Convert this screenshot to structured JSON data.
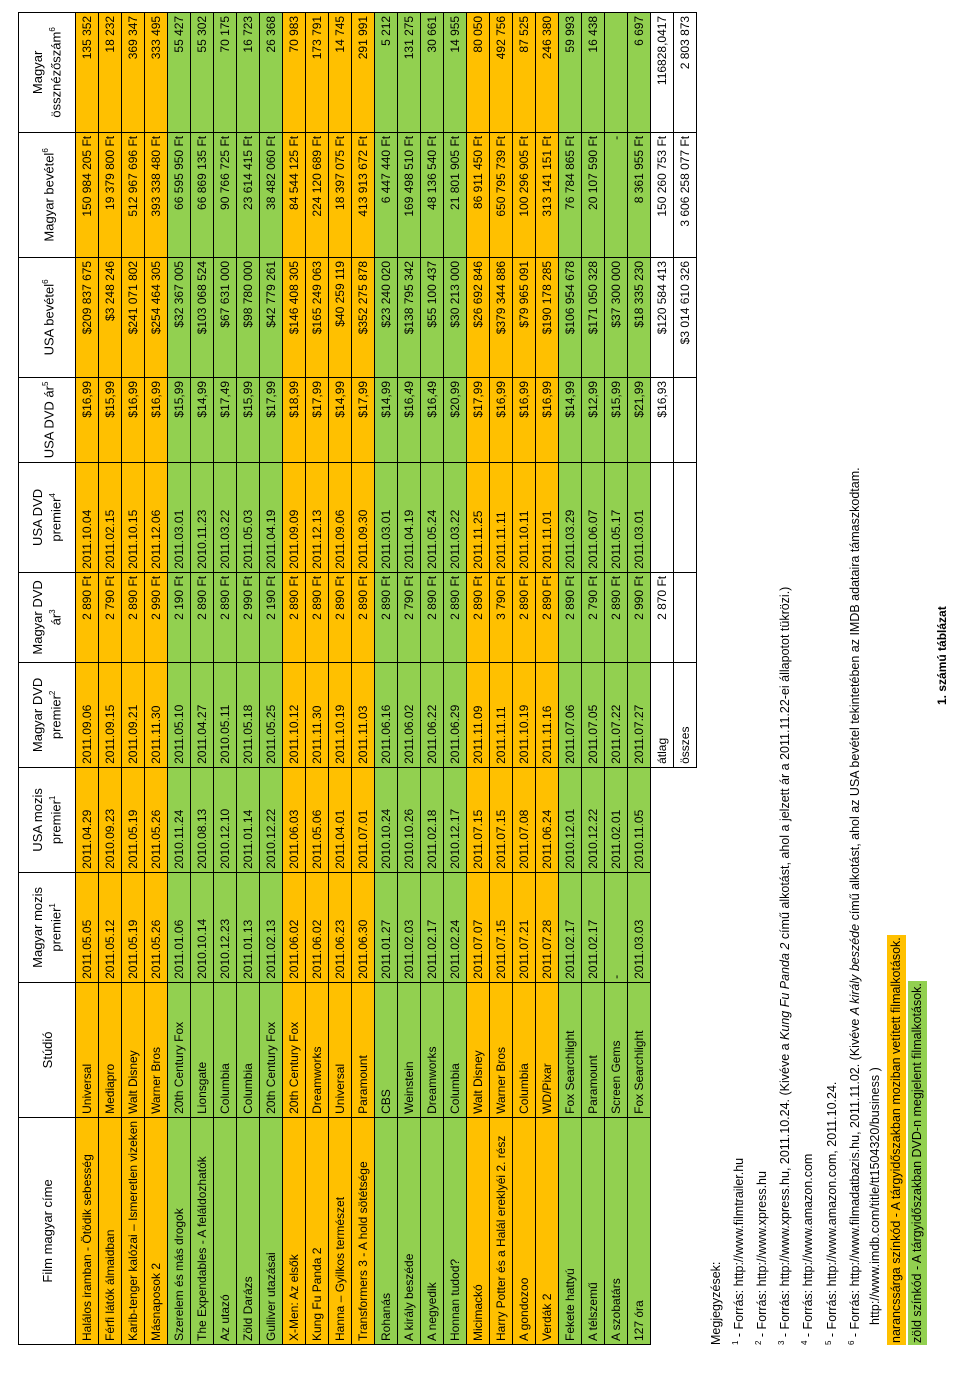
{
  "table": {
    "headers": [
      {
        "label": "Film magyar címe"
      },
      {
        "label": "Stúdió"
      },
      {
        "label": "Magyar mozis premier",
        "note": "1"
      },
      {
        "label": "USA mozis premier",
        "note": "1"
      },
      {
        "label": "Magyar DVD premier",
        "note": "2"
      },
      {
        "label": "Magyar DVD ár",
        "note": "3"
      },
      {
        "label": "USA DVD premier",
        "note": "4"
      },
      {
        "label": "USA DVD ár",
        "note": "5"
      },
      {
        "label": "USA bevétel",
        "note": "6"
      },
      {
        "label": "Magyar bevétel",
        "note": "6"
      },
      {
        "label": "Magyar össznézőszám",
        "note": "6"
      }
    ],
    "colors": {
      "orange": "#ffc000",
      "green": "#92d050"
    },
    "rows": [
      {
        "category": "orange",
        "cells": [
          "Halálos iramban - Ötödik sebesség",
          "Universal",
          "2011.05.05",
          "2011.04.29",
          "2011.09.06",
          "2 890 Ft",
          "2011.10.04",
          "$16,99",
          "$209 837 675",
          "150 984 205 Ft",
          "135 352"
        ]
      },
      {
        "category": "orange",
        "cells": [
          "Férfi látók álmaidban",
          "Mediapro",
          "2011.05.12",
          "2010.09.23",
          "2011.09.15",
          "2 790 Ft",
          "2011.02.15",
          "$15,99",
          "$3 248 246",
          "19 379 800 Ft",
          "18 232"
        ]
      },
      {
        "category": "orange",
        "cells": [
          "Karib-tenger kalózai – Ismeretlen vizeken",
          "Walt Disney",
          "2011.05.19",
          "2011.05.19",
          "2011.09.21",
          "2 890 Ft",
          "2011.10.15",
          "$16,99",
          "$241 071 802",
          "512 967 696 Ft",
          "369 347"
        ]
      },
      {
        "category": "orange",
        "cells": [
          "Másnaposok 2",
          "Warner Bros",
          "2011.05.26",
          "2011.05.26",
          "2011.11.30",
          "2 990 Ft",
          "2011.12.06",
          "$16,99",
          "$254 464 305",
          "393 338 480 Ft",
          "333 495"
        ]
      },
      {
        "category": "green",
        "cells": [
          "Szerelem és más drogok",
          "20th Century Fox",
          "2011.01.06",
          "2010.11.24",
          "2011.05.10",
          "2 190 Ft",
          "2011.03.01",
          "$15,99",
          "$32 367 005",
          "66 595 950 Ft",
          "55 427"
        ]
      },
      {
        "category": "green",
        "cells": [
          "The Expendables - A feláldozhatók",
          "Lionsgate",
          "2010.10.14",
          "2010.08.13",
          "2011.04.27",
          "2 890 Ft",
          "2010.11.23",
          "$14,99",
          "$103 068 524",
          "66 869 135 Ft",
          "55 302"
        ]
      },
      {
        "category": "green",
        "cells": [
          "Az utazó",
          "Columbia",
          "2010.12.23",
          "2010.12.10",
          "2010.05.11",
          "2 890 Ft",
          "2011.03.22",
          "$17,49",
          "$67 631 000",
          "90 766 725 Ft",
          "70 175"
        ]
      },
      {
        "category": "green",
        "cells": [
          "Zöld Darázs",
          "Columbia",
          "2011.01.13",
          "2011.01.14",
          "2011.05.18",
          "2 990 Ft",
          "2011.05.03",
          "$15,99",
          "$98 780 000",
          "23 614 415 Ft",
          "16 723"
        ]
      },
      {
        "category": "green",
        "cells": [
          "Gulliver utazásai",
          "20th Century Fox",
          "2011.02.13",
          "2010.12.22",
          "2011.05.25",
          "2 190 Ft",
          "2011.04.19",
          "$17,99",
          "$42 779 261",
          "38 482 060 Ft",
          "26 368"
        ]
      },
      {
        "category": "orange",
        "cells": [
          "X-Men: Az elsők",
          "20th Century Fox",
          "2011.06.02",
          "2011.06.03",
          "2011.10.12",
          "2 890 Ft",
          "2011.09.09",
          "$18,99",
          "$146 408 305",
          "84 544 125 Ft",
          "70 983"
        ]
      },
      {
        "category": "orange",
        "cells": [
          "Kung Fu Panda 2",
          "Dreamworks",
          "2011.06.02",
          "2011.05.06",
          "2011.11.30",
          "2 890 Ft",
          "2011.12.13",
          "$17,99",
          "$165 249 063",
          "224 120 689 Ft",
          "173 791"
        ]
      },
      {
        "category": "orange",
        "cells": [
          "Hanna – Gyilkos természet",
          "Universal",
          "2011.06.23",
          "2011.04.01",
          "2011.10.19",
          "2 890 Ft",
          "2011.09.06",
          "$14,99",
          "$40 259 119",
          "18 397 075 Ft",
          "14 745"
        ]
      },
      {
        "category": "orange",
        "cells": [
          "Transformers 3 - A hold sötétsége",
          "Paramount",
          "2011.06.30",
          "2011.07.01",
          "2011.11.03",
          "2 890 Ft",
          "2011.09.30",
          "$17,99",
          "$352 275 878",
          "413 913 672 Ft",
          "291 991"
        ]
      },
      {
        "category": "green",
        "cells": [
          "Rohanás",
          "CBS",
          "2011.01.27",
          "2010.10.24",
          "2011.06.16",
          "2 890 Ft",
          "2011.03.01",
          "$14,99",
          "$23 240 020",
          "6 447 440 Ft",
          "5 212"
        ]
      },
      {
        "category": "green",
        "cells": [
          "A király beszéde",
          "Weinstein",
          "2011.02.03",
          "2010.10.26",
          "2011.06.02",
          "2 790 Ft",
          "2011.04.19",
          "$16,49",
          "$138 795 342",
          "169 498 510 Ft",
          "131 275"
        ]
      },
      {
        "category": "green",
        "cells": [
          "A negyedik",
          "Dreamworks",
          "2011.02.17",
          "2011.02.18",
          "2011.06.22",
          "2 890 Ft",
          "2011.05.24",
          "$16,49",
          "$55 100 437",
          "48 136 540 Ft",
          "30 661"
        ]
      },
      {
        "category": "green",
        "cells": [
          "Honnan tudod?",
          "Columbia",
          "2011.02.24",
          "2010.12.17",
          "2011.06.29",
          "2 890 Ft",
          "2011.03.22",
          "$20,99",
          "$30 213 000",
          "21 801 905 Ft",
          "14 955"
        ]
      },
      {
        "category": "orange",
        "cells": [
          "Micimackó",
          "Walt Disney",
          "2011.07.07",
          "2011.07.15",
          "2011.11.09",
          "2 890 Ft",
          "2011.11.25",
          "$17,99",
          "$26 692 846",
          "86 911 450 Ft",
          "80 050"
        ]
      },
      {
        "category": "orange",
        "cells": [
          "Harry Potter és a Halál ereklyéi 2. rész",
          "Warner Bros",
          "2011.07.15",
          "2011.07.15",
          "2011.11.11",
          "3 790 Ft",
          "2011.11.11",
          "$16,99",
          "$379 344 886",
          "650 795 739 Ft",
          "492 756"
        ]
      },
      {
        "category": "orange",
        "cells": [
          "A gondozoo",
          "Columbia",
          "2011.07.21",
          "2011.07.08",
          "2011.10.19",
          "2 890 Ft",
          "2011.10.11",
          "$16,99",
          "$79 965 091",
          "100 296 905 Ft",
          "87 525"
        ]
      },
      {
        "category": "orange",
        "cells": [
          "Verdák 2",
          "WD/Pixar",
          "2011.07.28",
          "2011.06.24",
          "2011.11.16",
          "2 890 Ft",
          "2011.11.01",
          "$16,99",
          "$190 178 285",
          "313 141 151 Ft",
          "246 380"
        ]
      },
      {
        "category": "green",
        "cells": [
          "Fekete hattyú",
          "Fox Searchlight",
          "2011.02.17",
          "2010.12.01",
          "2011.07.06",
          "2 890 Ft",
          "2011.03.29",
          "$14,99",
          "$106 954 678",
          "76 784 865 Ft",
          "59 993"
        ]
      },
      {
        "category": "green",
        "cells": [
          "A télszemű",
          "Paramount",
          "2011.02.17",
          "2010.12.22",
          "2011.07.05",
          "2 790 Ft",
          "2011.06.07",
          "$12,99",
          "$171 050 328",
          "20 107 590 Ft",
          "16 438"
        ]
      },
      {
        "category": "green",
        "cells": [
          "A szobatárs",
          "Screen Gems",
          "-",
          "2011.02.01",
          "2011.07.22",
          "2 890 Ft",
          "2011.05.17",
          "$15,99",
          "$37 300 000",
          "-",
          null
        ]
      },
      {
        "category": "green",
        "cells": [
          "127 óra",
          "Fox Searchlight",
          "2011.03.03",
          "2010.11.05",
          "2011.07.27",
          "2 990 Ft",
          "2011.03.01",
          "$21,99",
          "$18 335 230",
          "8 361 955 Ft",
          "6 697"
        ]
      }
    ],
    "summary": [
      {
        "cells": [
          "átlag",
          "2 870 Ft",
          null,
          "$16,93",
          "$120 584 413",
          "150 260 753 Ft",
          "116828,0417"
        ]
      },
      {
        "cells": [
          "összes",
          null,
          null,
          null,
          "$3 014 610 326",
          "3 606 258 077 Ft",
          "2 803 873"
        ]
      }
    ]
  },
  "notes": {
    "title": "Megjegyzések:",
    "items": [
      {
        "num": "1",
        "parts": [
          {
            "text": " - Forrás: http://www.filmtrailer.hu"
          }
        ]
      },
      {
        "num": "2",
        "parts": [
          {
            "text": " - Forrás: http://www.xpress.hu"
          }
        ]
      },
      {
        "num": "3",
        "parts": [
          {
            "text": " - Forrás: http://www.xpress.hu, 2011.10.24. (Kivéve a "
          },
          {
            "text": "Kung Fu Panda 2",
            "italic": true
          },
          {
            "text": " című alkotást, ahol a jelzett ár a 2011.11.22-ei állapotot tükrözi.)"
          }
        ]
      },
      {
        "num": "4",
        "parts": [
          {
            "text": " - Forrás: http://www.amazon.com"
          }
        ]
      },
      {
        "num": "5",
        "parts": [
          {
            "text": " - Forrás: http://www.amazon.com, 2011.10.24."
          }
        ]
      },
      {
        "num": "6",
        "parts": [
          {
            "text": " - Forrás: http://www.filmadatbazis.hu, 2011.11.02. (Kivéve "
          },
          {
            "text": "A király beszéde",
            "italic": true
          },
          {
            "text": " című alkotást, ahol az USA bevétel tekintetében az IMDB adataira támaszkodtam."
          }
        ]
      },
      {
        "parts": [
          {
            "text": "http://www.imdb.com/title/tt1504320/business )"
          }
        ]
      }
    ],
    "legend": [
      {
        "category": "orange",
        "text": "narancssárga színkód - A tárgyidőszakban moziban vetített filmalkotások."
      },
      {
        "category": "green",
        "text": "zöld színkód - A tárgyidőszakban DVD-n megjelent filmalkotások."
      }
    ]
  },
  "caption": "1. számú táblázat"
}
